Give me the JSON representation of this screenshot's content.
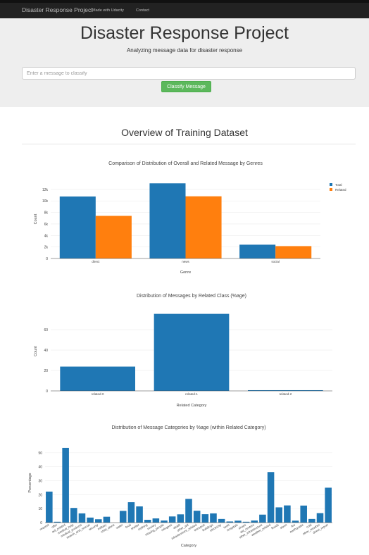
{
  "navbar": {
    "brand": "Disaster Response Project",
    "links": [
      "Made with Udacity",
      "Contact"
    ]
  },
  "header": {
    "title": "Disaster Response Project",
    "subtitle": "Analyzing message data for disaster response"
  },
  "classify": {
    "placeholder": "Enter a message to classify",
    "button_label": "Classify Message"
  },
  "overview_title": "Overview of Training Dataset",
  "colors": {
    "blue": "#1f77b4",
    "orange": "#ff7f0e",
    "button": "#5cb85c"
  },
  "chart_data": [
    {
      "type": "bar",
      "title": "Comparison of Distribution of Overall and Related Message by Genres",
      "categories": [
        "direct",
        "news",
        "social"
      ],
      "series": [
        {
          "name": "Total",
          "values": [
            10766,
            13054,
            2396
          ]
        },
        {
          "name": "Related",
          "values": [
            7400,
            10800,
            2150
          ]
        }
      ],
      "xlabel": "Genre",
      "ylabel": "Count",
      "ylim": [
        0,
        13700
      ],
      "yticks": [
        0,
        2000,
        4000,
        6000,
        8000,
        10000,
        12000
      ],
      "ytick_labels": [
        "0",
        "2k",
        "4k",
        "6k",
        "8k",
        "10k",
        "12k"
      ],
      "legend": "top-right"
    },
    {
      "type": "bar",
      "title": "Distribution of Messages by Related Class (%age)",
      "categories": [
        "related-0",
        "related-1",
        "related-2"
      ],
      "values": [
        23.8,
        75.5,
        0.7
      ],
      "xlabel": "Related Category",
      "ylabel": "Count",
      "ylim": [
        0,
        78
      ],
      "yticks": [
        0,
        20,
        40,
        60
      ],
      "ytick_labels": [
        "0",
        "20",
        "40",
        "60"
      ]
    },
    {
      "type": "bar",
      "title": "Distribution of Message Categories by %age (within Related Category)",
      "categories": [
        "request",
        "offer",
        "aid_related",
        "medical_help",
        "medical_products",
        "search_and_rescue",
        "security",
        "military",
        "child_alone",
        "water",
        "food",
        "shelter",
        "clothing",
        "money",
        "missing_people",
        "refugees",
        "death",
        "other_aid",
        "infrastructure_related",
        "transport",
        "buildings",
        "electricity",
        "tools",
        "hospitals",
        "shops",
        "aid_centers",
        "other_infrastructure",
        "weather_related",
        "floods",
        "storm",
        "fire",
        "earthquake",
        "cold",
        "other_weather",
        "direct_report"
      ],
      "values": [
        22.2,
        0.6,
        53.5,
        10.5,
        6.6,
        3.6,
        2.4,
        4.2,
        0,
        8.4,
        14.6,
        11.6,
        2.0,
        3.0,
        1.5,
        4.4,
        5.9,
        17.0,
        8.5,
        6.0,
        6.6,
        2.6,
        0.8,
        1.4,
        0.6,
        1.5,
        5.7,
        36.2,
        10.9,
        12.3,
        1.4,
        12.2,
        2.6,
        6.8,
        25.0
      ],
      "xlabel": "Category",
      "ylabel": "Percentage",
      "ylim": [
        0,
        57
      ],
      "yticks": [
        0,
        10,
        20,
        30,
        40,
        50
      ],
      "ytick_labels": [
        "0",
        "10",
        "20",
        "30",
        "40",
        "50"
      ]
    }
  ]
}
